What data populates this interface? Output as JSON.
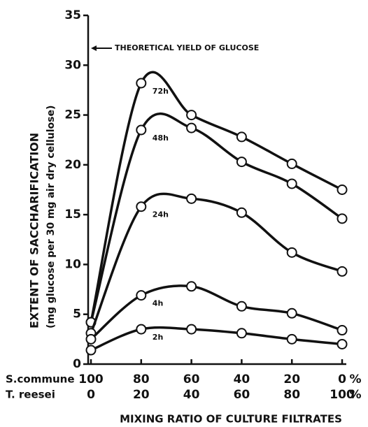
{
  "chart_data": {
    "type": "line",
    "x_title": "MIXING RATIO OF CULTURE FILTRATES",
    "y_title": "EXTENT OF SACCHARIFICATION",
    "y_subtitle": "(mg glucose per 30 mg air dry cellulose)",
    "annotation": "THEORETICAL YIELD OF GLUCOSE",
    "x_unit": "%",
    "x_rows": [
      {
        "name": "S.commune",
        "ticks": [
          100,
          80,
          60,
          40,
          20,
          0
        ]
      },
      {
        "name": "T. reesei",
        "ticks": [
          0,
          20,
          40,
          60,
          80,
          100
        ]
      }
    ],
    "x": [
      100,
      80,
      60,
      40,
      20,
      0
    ],
    "xlim": [
      100,
      0
    ],
    "ylim": [
      0,
      35
    ],
    "yticks": [
      0,
      5,
      10,
      15,
      20,
      25,
      30,
      35
    ],
    "color": "#111111",
    "series": [
      {
        "name": "72h",
        "values": [
          4.2,
          28.2,
          25.0,
          22.8,
          20.1,
          17.5
        ]
      },
      {
        "name": "48h",
        "values": [
          4.2,
          23.5,
          23.7,
          20.3,
          18.1,
          14.6
        ]
      },
      {
        "name": "24h",
        "values": [
          3.1,
          15.8,
          16.6,
          15.2,
          11.2,
          9.3
        ]
      },
      {
        "name": "4h",
        "values": [
          2.5,
          6.9,
          7.8,
          5.8,
          5.1,
          3.4
        ]
      },
      {
        "name": "2h",
        "values": [
          1.4,
          3.5,
          3.5,
          3.1,
          2.5,
          2.0
        ]
      }
    ]
  }
}
